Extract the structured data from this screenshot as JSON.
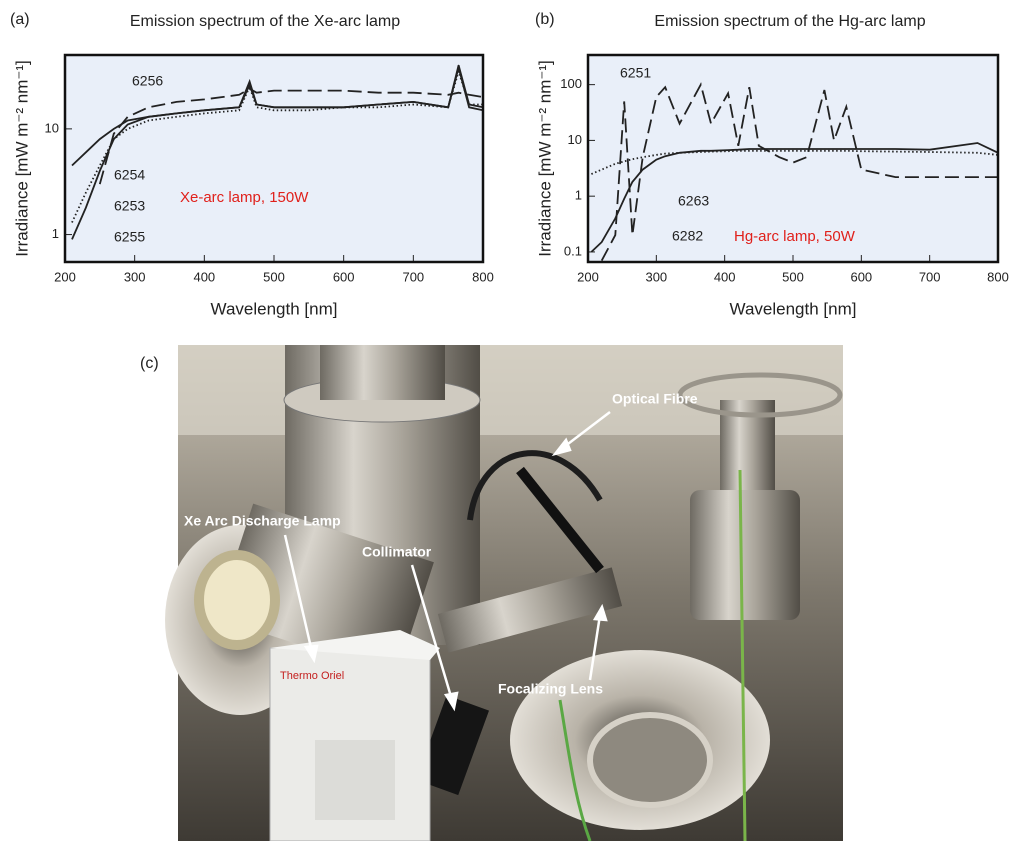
{
  "chart_data": [
    {
      "type": "line",
      "panel_label": "(a)",
      "title": "Emission spectrum of the Xe-arc lamp",
      "x_label": "Wavelength [nm]",
      "y_label": "Irradiance [mW m⁻² nm⁻¹]",
      "xlim": [
        200,
        800
      ],
      "xticks": [
        200,
        300,
        400,
        500,
        600,
        700,
        800
      ],
      "ylim": [
        0.55,
        50
      ],
      "yticks": [
        1,
        10
      ],
      "yscale": "log",
      "background": "#e9eff9",
      "x": [
        210,
        230,
        250,
        270,
        290,
        320,
        360,
        400,
        450,
        465,
        475,
        500,
        550,
        600,
        650,
        700,
        750,
        765,
        780,
        800
      ],
      "series": [
        {
          "name": "6256",
          "color": "#222222",
          "dash": "longdash",
          "values": [
            null,
            null,
            3,
            9,
            13,
            16,
            18,
            19,
            21,
            24,
            22,
            23,
            23,
            23,
            22,
            22,
            21,
            22,
            21,
            20
          ]
        },
        {
          "name": "6254",
          "color": "#222222",
          "dash": "solid",
          "values": [
            4.5,
            6,
            8,
            10,
            12,
            13,
            14,
            15,
            16,
            28,
            17,
            16,
            16,
            16,
            17,
            18,
            16,
            40,
            17,
            16
          ]
        },
        {
          "name": "6253",
          "color": "#222222",
          "dash": "dotted",
          "values": [
            1.3,
            2.5,
            4.5,
            8,
            10,
            12,
            13,
            14,
            15,
            25,
            16,
            15,
            15,
            16,
            16,
            17,
            16,
            35,
            17,
            17
          ]
        },
        {
          "name": "6255",
          "color": "#222222",
          "dash": "solid",
          "values": [
            0.9,
            1.8,
            4,
            8,
            11,
            13,
            14,
            15,
            16,
            26,
            17,
            16,
            16,
            16,
            17,
            18,
            16,
            38,
            16,
            15
          ]
        }
      ],
      "annotation": "Xe-arc lamp, 150W"
    },
    {
      "type": "line",
      "panel_label": "(b)",
      "title": "Emission spectrum of the Hg-arc lamp",
      "x_label": "Wavelength [nm]",
      "y_label": "Irradiance [mW m⁻² nm⁻¹]",
      "xlim": [
        200,
        800
      ],
      "xticks": [
        200,
        300,
        400,
        500,
        600,
        700,
        800
      ],
      "ylim": [
        0.066,
        340
      ],
      "yticks": [
        0.1,
        1,
        10,
        100
      ],
      "yscale": "log",
      "background": "#e9eff9",
      "x": [
        205,
        220,
        240,
        253,
        265,
        280,
        300,
        313,
        334,
        365,
        380,
        405,
        420,
        436,
        450,
        480,
        500,
        520,
        546,
        560,
        578,
        600,
        650,
        700,
        770,
        800
      ],
      "series": [
        {
          "name": "6251",
          "color": "#222222",
          "dash": "dotted",
          "values": [
            2.5,
            3,
            3.8,
            4.2,
            4.6,
            5,
            5.5,
            5.8,
            6,
            6.2,
            6.3,
            6.4,
            6.5,
            6.5,
            6.5,
            6.5,
            6.5,
            6.5,
            6.5,
            6.5,
            6.5,
            6.4,
            6.3,
            6.2,
            6,
            5.5
          ]
        },
        {
          "name": "6263",
          "color": "#222222",
          "dash": "solid",
          "values": [
            0.1,
            0.15,
            0.4,
            0.9,
            1.8,
            3,
            4.5,
            5.2,
            6,
            6.5,
            6.5,
            6.7,
            6.8,
            7,
            7,
            7,
            7,
            7,
            7,
            7,
            7,
            7,
            7,
            6.8,
            9,
            6
          ]
        },
        {
          "name": "6282",
          "color": "#222222",
          "dash": "longdash",
          "values": [
            null,
            0.07,
            0.2,
            50,
            0.2,
            5,
            60,
            90,
            20,
            100,
            20,
            70,
            8,
            90,
            8,
            5,
            4,
            5,
            80,
            10,
            40,
            3,
            2.2,
            2.2,
            2.2,
            2.2
          ]
        }
      ],
      "annotation": "Hg-arc lamp, 50W"
    }
  ],
  "photo": {
    "panel_label": "(c)",
    "labels": [
      "Optical Fibre",
      "Xe Arc Discharge Lamp",
      "Collimator",
      "Focalizing Lens"
    ],
    "brand": "Thermo Oriel"
  }
}
